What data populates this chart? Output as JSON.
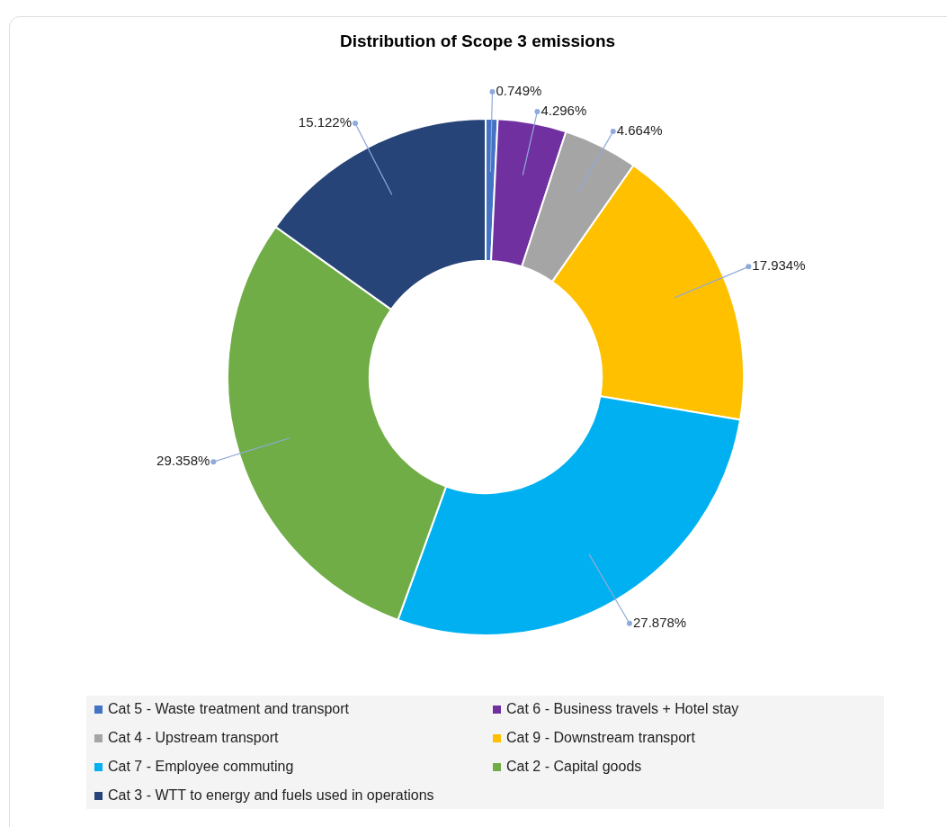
{
  "chart_data": {
    "type": "donut",
    "title": "Distribution of Scope 3 emissions",
    "categories": [
      "Cat 5 - Waste treatment and transport",
      "Cat 6 - Business travels + Hotel stay",
      "Cat 4 - Upstream transport",
      "Cat 9 - Downstream transport",
      "Cat 7 - Employee commuting",
      "Cat 2 - Capital goods",
      "Cat 3 - WTT to energy and fuels used in operations"
    ],
    "values": [
      0.749,
      4.296,
      4.664,
      17.934,
      27.878,
      29.358,
      15.122
    ],
    "colors": [
      "#4472c4",
      "#7030a0",
      "#a5a5a5",
      "#ffc000",
      "#00b0f0",
      "#70ad47",
      "#264478"
    ],
    "value_labels": [
      "0.749%",
      "4.296%",
      "4.664%",
      "17.934%",
      "27.878%",
      "29.358%",
      "15.122%"
    ],
    "legend": "bottom"
  }
}
